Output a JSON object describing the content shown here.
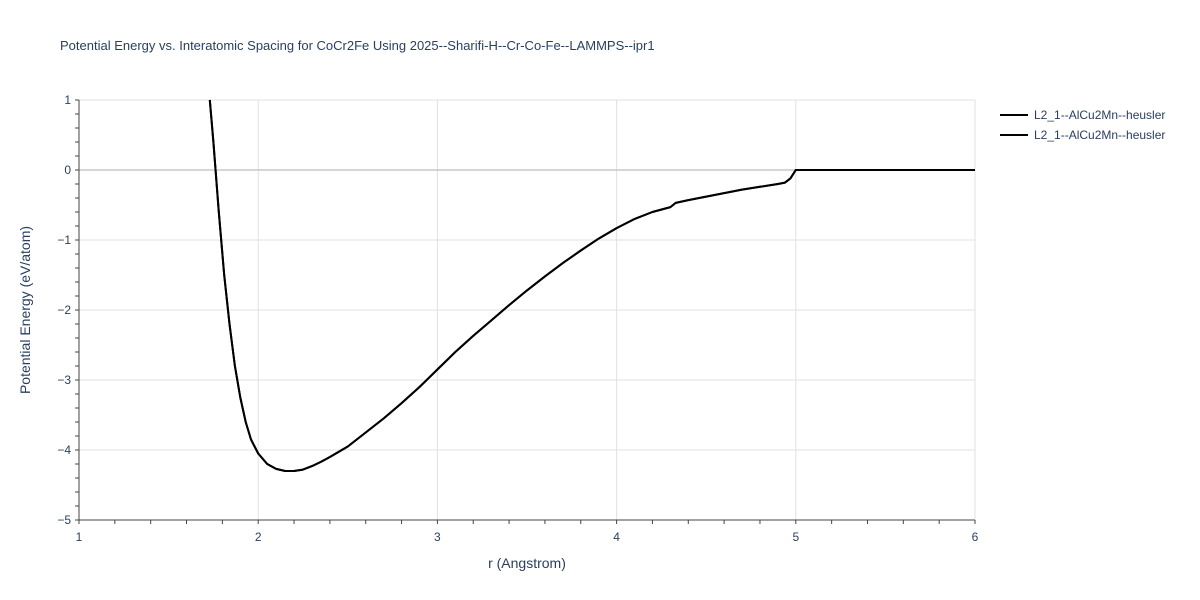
{
  "chart_data": {
    "type": "line",
    "title": "Potential Energy vs. Interatomic Spacing for CoCr2Fe Using 2025--Sharifi-H--Cr-Co-Fe--LAMMPS--ipr1",
    "xlabel": "r (Angstrom)",
    "ylabel": "Potential Energy (eV/atom)",
    "xlim": [
      1,
      6
    ],
    "ylim": [
      -5,
      1
    ],
    "xticks": [
      1,
      2,
      3,
      4,
      5,
      6
    ],
    "xtick_labels": [
      "1",
      "2",
      "3",
      "4",
      "5",
      "6"
    ],
    "yticks": [
      1,
      0,
      -1,
      -2,
      -3,
      -4,
      -5
    ],
    "ytick_labels": [
      "1",
      "0",
      "−1",
      "−2",
      "−3",
      "−4",
      "−5"
    ],
    "grid": true,
    "legend_position": "top-right",
    "colors": {
      "line": "#000000",
      "text": "#2a3f5f",
      "grid": "#e1e1e1"
    },
    "series": [
      {
        "name": "L2_1--AlCu2Mn--heusler",
        "x": [
          1.73,
          1.75,
          1.78,
          1.81,
          1.84,
          1.87,
          1.9,
          1.93,
          1.96,
          2.0,
          2.05,
          2.1,
          2.15,
          2.2,
          2.25,
          2.3,
          2.35,
          2.4,
          2.5,
          2.6,
          2.7,
          2.8,
          2.9,
          3.0,
          3.1,
          3.2,
          3.3,
          3.4,
          3.5,
          3.6,
          3.7,
          3.8,
          3.9,
          4.0,
          4.1,
          4.2,
          4.3,
          4.33,
          4.4,
          4.5,
          4.6,
          4.7,
          4.8,
          4.9,
          4.94,
          4.97,
          5.0,
          5.5,
          6.0
        ],
        "y": [
          1.0,
          0.4,
          -0.6,
          -1.5,
          -2.2,
          -2.8,
          -3.25,
          -3.6,
          -3.85,
          -4.05,
          -4.2,
          -4.27,
          -4.3,
          -4.3,
          -4.28,
          -4.23,
          -4.17,
          -4.1,
          -3.95,
          -3.75,
          -3.55,
          -3.33,
          -3.1,
          -2.85,
          -2.6,
          -2.37,
          -2.15,
          -1.93,
          -1.72,
          -1.52,
          -1.33,
          -1.15,
          -0.98,
          -0.83,
          -0.7,
          -0.6,
          -0.53,
          -0.47,
          -0.43,
          -0.38,
          -0.33,
          -0.28,
          -0.24,
          -0.2,
          -0.18,
          -0.12,
          0.0,
          0.0,
          0.0
        ]
      },
      {
        "name": "L2_1--AlCu2Mn--heusler",
        "x": [
          1.73,
          1.75,
          1.78,
          1.81,
          1.84,
          1.87,
          1.9,
          1.93,
          1.96,
          2.0,
          2.05,
          2.1,
          2.15,
          2.2,
          2.25,
          2.3,
          2.35,
          2.4,
          2.5,
          2.6,
          2.7,
          2.8,
          2.9,
          3.0,
          3.1,
          3.2,
          3.3,
          3.4,
          3.5,
          3.6,
          3.7,
          3.8,
          3.9,
          4.0,
          4.1,
          4.2,
          4.3,
          4.33,
          4.4,
          4.5,
          4.6,
          4.7,
          4.8,
          4.9,
          4.94,
          4.97,
          5.0,
          5.5,
          6.0
        ],
        "y": [
          1.0,
          0.4,
          -0.6,
          -1.5,
          -2.2,
          -2.8,
          -3.25,
          -3.6,
          -3.85,
          -4.05,
          -4.2,
          -4.27,
          -4.3,
          -4.3,
          -4.28,
          -4.23,
          -4.17,
          -4.1,
          -3.95,
          -3.75,
          -3.55,
          -3.33,
          -3.1,
          -2.85,
          -2.6,
          -2.37,
          -2.15,
          -1.93,
          -1.72,
          -1.52,
          -1.33,
          -1.15,
          -0.98,
          -0.83,
          -0.7,
          -0.6,
          -0.53,
          -0.47,
          -0.43,
          -0.38,
          -0.33,
          -0.28,
          -0.24,
          -0.2,
          -0.18,
          -0.12,
          0.0,
          0.0,
          0.0
        ]
      }
    ]
  }
}
